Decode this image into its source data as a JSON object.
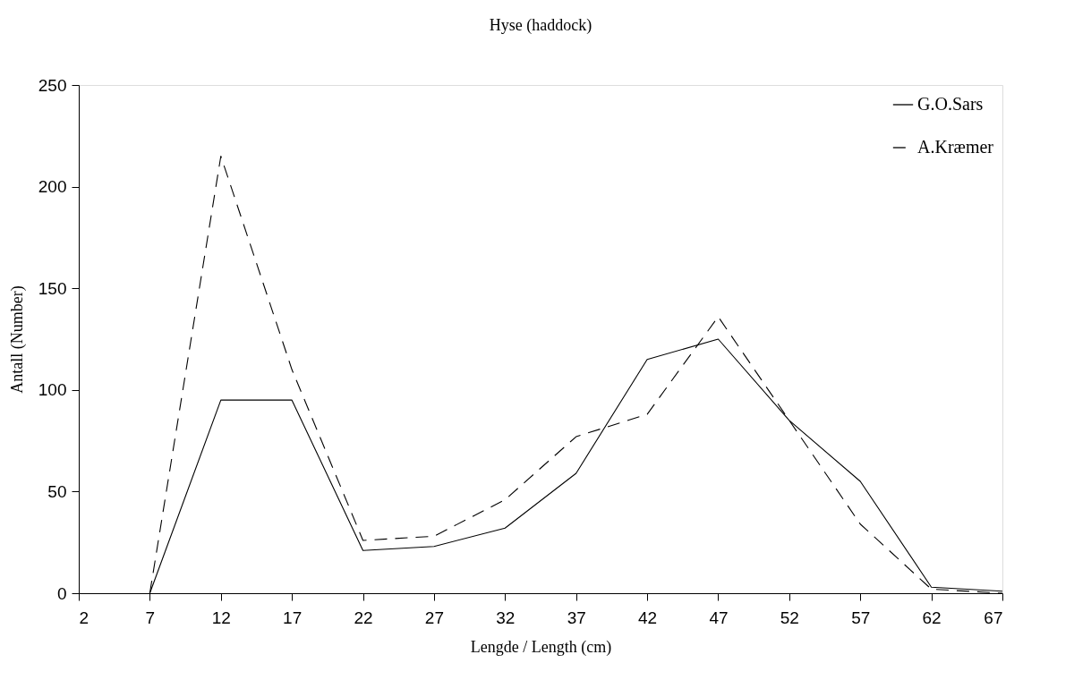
{
  "chart_data": {
    "type": "line",
    "title": "Hyse (haddock)",
    "xlabel": "Lengde / Length (cm)",
    "ylabel": "Antall (Number)",
    "x": [
      7,
      12,
      17,
      22,
      27,
      32,
      37,
      42,
      47,
      52,
      57,
      62,
      67
    ],
    "series": [
      {
        "name": "G.O.Sars",
        "color": "#000000",
        "line_style": "solid",
        "values": [
          0,
          95,
          95,
          21,
          23,
          32,
          59,
          115,
          125,
          85,
          55,
          3,
          1
        ]
      },
      {
        "name": "A.Kræmer",
        "color": "#000000",
        "line_style": "dashed",
        "values": [
          0,
          215,
          110,
          26,
          28,
          46,
          77,
          88,
          136,
          85,
          34,
          2,
          0
        ]
      }
    ],
    "xlim": [
      2,
      67
    ],
    "xticks": [
      2,
      7,
      12,
      17,
      22,
      27,
      32,
      37,
      42,
      47,
      52,
      57,
      62,
      67
    ],
    "ylim": [
      0,
      250
    ],
    "yticks": [
      0,
      50,
      100,
      150,
      200,
      250
    ],
    "grid": false,
    "legend": "top right",
    "marker": "none"
  }
}
